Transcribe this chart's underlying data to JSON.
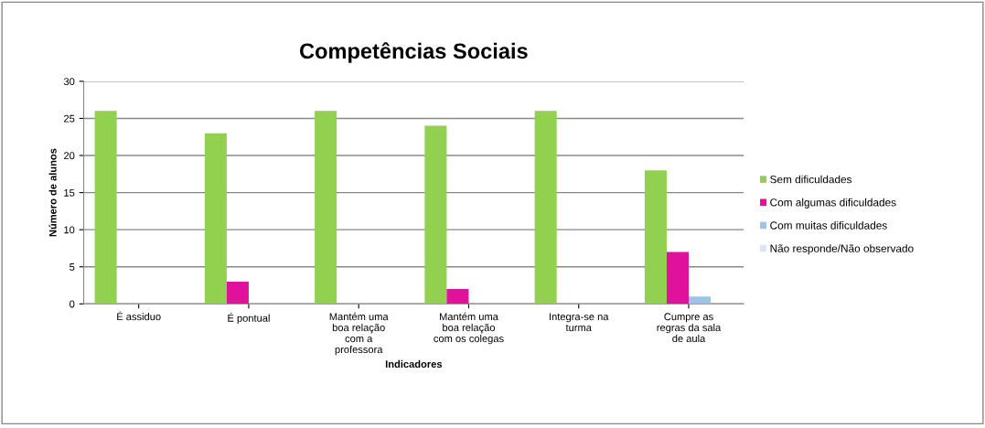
{
  "chart_data": {
    "type": "bar",
    "title": "Competências Sociais",
    "xlabel": "Indicadores",
    "ylabel": "Número de alunos",
    "categories": [
      "É assiduo",
      "É pontual",
      "Mantém uma\nboa relação\ncom a\nprofessora",
      "Mantém uma\nboa relação\ncom os colegas",
      "Integra-se na\nturma",
      "Cumpre as\nregras da sala\nde aula"
    ],
    "series": [
      {
        "name": "Sem dificuldades",
        "color": "#92d050",
        "values": [
          26,
          23,
          26,
          24,
          26,
          18
        ]
      },
      {
        "name": "Com algumas dificuldades",
        "color": "#e0119b",
        "values": [
          0,
          3,
          0,
          2,
          0,
          7
        ]
      },
      {
        "name": "Com muitas dificuldades",
        "color": "#9dc3e6",
        "values": [
          0,
          0,
          0,
          0,
          0,
          1
        ]
      },
      {
        "name": "Não responde/Não observado",
        "color": "#dce6f2",
        "values": [
          0,
          0,
          0,
          0,
          0,
          0
        ]
      }
    ],
    "ylim": [
      0,
      30
    ],
    "yticks": [
      0,
      5,
      10,
      15,
      20,
      25,
      30
    ],
    "grid": "y",
    "legend": "right"
  }
}
